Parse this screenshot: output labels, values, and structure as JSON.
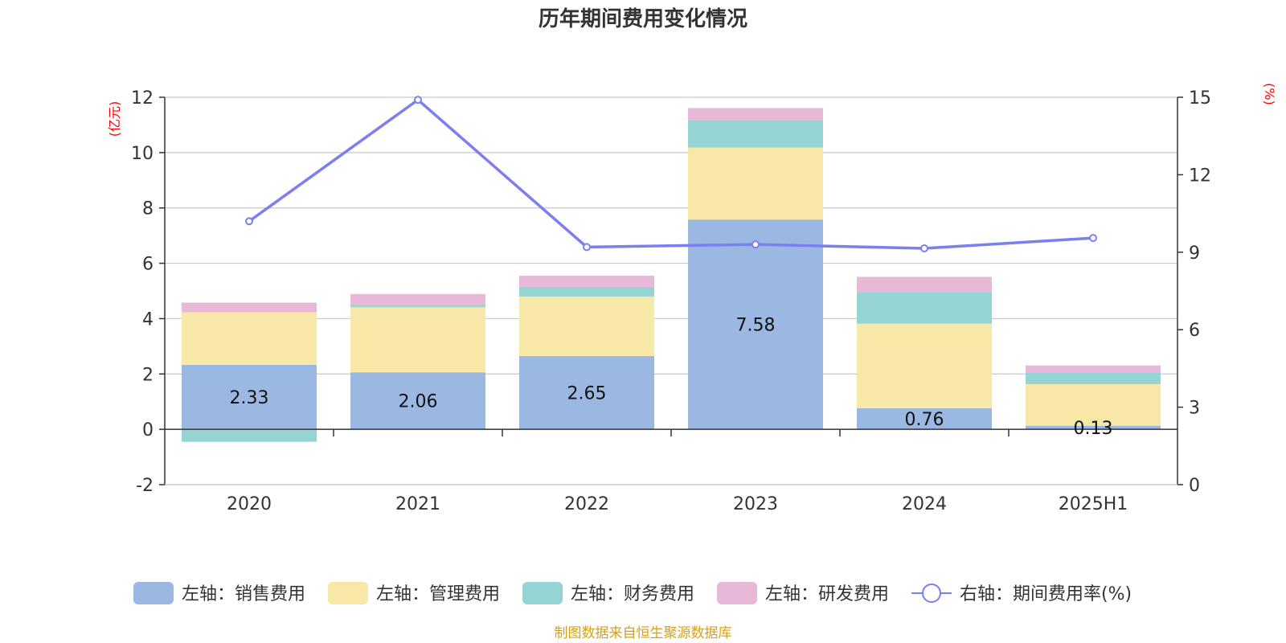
{
  "chart_data": {
    "type": "bar",
    "title": "历年期间费用变化情况",
    "categories": [
      "2020",
      "2021",
      "2022",
      "2023",
      "2024",
      "2025H1"
    ],
    "stacked": true,
    "left_axis": {
      "unit_label": "(亿元)",
      "ylim": [
        -2,
        12
      ],
      "ticks": [
        "-2",
        "0",
        "2",
        "4",
        "6",
        "8",
        "10",
        "12"
      ]
    },
    "right_axis": {
      "unit_label": "(%)",
      "ylim": [
        0,
        15
      ],
      "ticks": [
        "0",
        "3",
        "6",
        "9",
        "12",
        "15"
      ]
    },
    "grid": true,
    "legend_position": "bottom",
    "series": [
      {
        "name": "左轴：销售费用",
        "axis": "left",
        "type": "bar",
        "color": "#9bb8e3",
        "values": [
          2.33,
          2.06,
          2.65,
          7.58,
          0.76,
          0.13
        ],
        "labels": [
          "2.33",
          "2.06",
          "2.65",
          "7.58",
          "0.76",
          "0.13"
        ]
      },
      {
        "name": "左轴：管理费用",
        "axis": "left",
        "type": "bar",
        "color": "#f8e8a8",
        "values": [
          1.9,
          2.35,
          2.15,
          2.6,
          3.06,
          1.5
        ]
      },
      {
        "name": "左轴：财务费用",
        "axis": "left",
        "type": "bar",
        "color": "#96d4d4",
        "values": [
          -0.45,
          0.08,
          0.35,
          0.98,
          1.14,
          0.43
        ]
      },
      {
        "name": "左轴：研发费用",
        "axis": "left",
        "type": "bar",
        "color": "#e8b8d8",
        "values": [
          0.35,
          0.4,
          0.4,
          0.45,
          0.55,
          0.25
        ]
      },
      {
        "name": "右轴：期间费用率(%)",
        "axis": "right",
        "type": "line",
        "color": "#7b7fef",
        "values": [
          10.2,
          14.9,
          9.2,
          9.3,
          9.15,
          9.55
        ]
      }
    ],
    "source": "制图数据来自恒生聚源数据库"
  }
}
